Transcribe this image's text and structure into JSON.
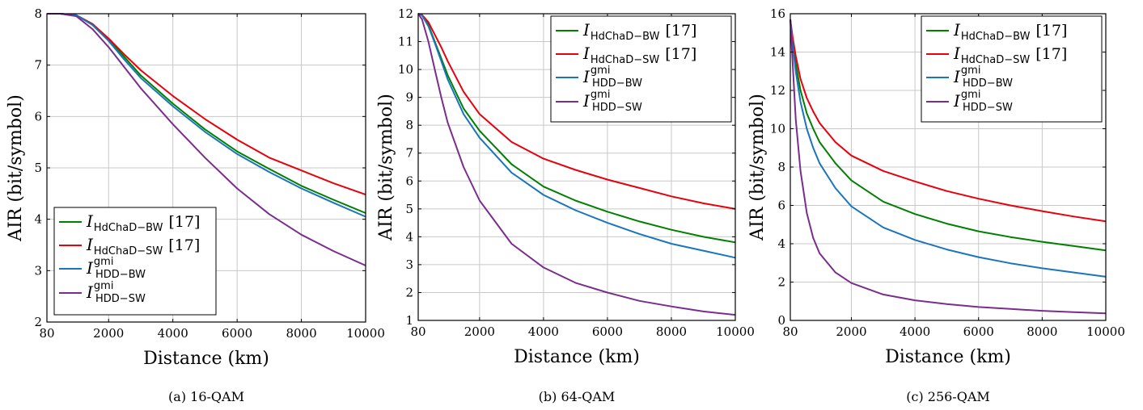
{
  "chart_data": [
    {
      "type": "line",
      "caption": "(a) 16-QAM",
      "xlabel": "Distance (km)",
      "ylabel": "AIR (bit/symbol)",
      "xlim": [
        80,
        10000
      ],
      "ylim": [
        2,
        8
      ],
      "xticks": [
        "80",
        "2000",
        "4000",
        "6000",
        "8000",
        "10000"
      ],
      "xtick_values": [
        80,
        2000,
        4000,
        6000,
        8000,
        10000
      ],
      "yticks": [
        "2",
        "3",
        "4",
        "5",
        "6",
        "7",
        "8"
      ],
      "ytick_values": [
        2,
        3,
        4,
        5,
        6,
        7,
        8
      ],
      "grid": true,
      "legend_position": "bottom-left",
      "x": [
        80,
        500,
        1000,
        1500,
        2000,
        2500,
        3000,
        4000,
        5000,
        6000,
        7000,
        8000,
        9000,
        10000
      ],
      "series": [
        {
          "main": "I",
          "sub": "HdChaD−BW",
          "sup": "",
          "ref": "[17]",
          "color": "#008000",
          "values": [
            8.0,
            8.0,
            7.97,
            7.8,
            7.5,
            7.15,
            6.8,
            6.25,
            5.75,
            5.32,
            4.98,
            4.65,
            4.38,
            4.12
          ]
        },
        {
          "main": "I",
          "sub": "HdChaD−SW",
          "sup": "",
          "ref": "[17]",
          "color": "#e8000b",
          "values": [
            8.0,
            8.0,
            7.97,
            7.8,
            7.52,
            7.2,
            6.9,
            6.4,
            5.95,
            5.55,
            5.2,
            4.95,
            4.7,
            4.48
          ]
        },
        {
          "main": "I",
          "sub": "HDD−BW",
          "sup": "gmi",
          "ref": "",
          "color": "#1a75bc",
          "values": [
            8.0,
            8.0,
            7.97,
            7.78,
            7.47,
            7.1,
            6.75,
            6.2,
            5.7,
            5.27,
            4.92,
            4.6,
            4.32,
            4.05
          ]
        },
        {
          "main": "I",
          "sub": "HDD−SW",
          "sup": "gmi",
          "ref": "",
          "color": "#7b2d8e",
          "values": [
            8.0,
            8.0,
            7.95,
            7.7,
            7.35,
            6.95,
            6.55,
            5.85,
            5.2,
            4.6,
            4.1,
            3.7,
            3.38,
            3.1
          ]
        }
      ]
    },
    {
      "type": "line",
      "caption": "(b) 64-QAM",
      "xlabel": "Distance (km)",
      "ylabel": "AIR (bit/symbol)",
      "xlim": [
        80,
        10000
      ],
      "ylim": [
        1,
        12
      ],
      "xticks": [
        "80",
        "2000",
        "4000",
        "6000",
        "8000",
        "10000"
      ],
      "xtick_values": [
        80,
        2000,
        4000,
        6000,
        8000,
        10000
      ],
      "yticks": [
        "1",
        "2",
        "3",
        "4",
        "5",
        "6",
        "7",
        "8",
        "9",
        "10",
        "11",
        "12"
      ],
      "ytick_values": [
        1,
        2,
        3,
        4,
        5,
        6,
        7,
        8,
        9,
        10,
        11,
        12
      ],
      "grid": true,
      "legend_position": "top-right",
      "x": [
        80,
        200,
        400,
        600,
        800,
        1000,
        1500,
        2000,
        3000,
        4000,
        5000,
        6000,
        7000,
        8000,
        9000,
        10000
      ],
      "series": [
        {
          "main": "I",
          "sub": "HdChaD−BW",
          "sup": "",
          "ref": "[17]",
          "color": "#008000",
          "values": [
            12.0,
            11.95,
            11.6,
            11.0,
            10.4,
            9.8,
            8.6,
            7.8,
            6.6,
            5.8,
            5.3,
            4.9,
            4.55,
            4.25,
            4.0,
            3.8
          ]
        },
        {
          "main": "I",
          "sub": "HdChaD−SW",
          "sup": "",
          "ref": "[17]",
          "color": "#e8000b",
          "values": [
            12.0,
            11.96,
            11.7,
            11.25,
            10.8,
            10.3,
            9.2,
            8.4,
            7.4,
            6.8,
            6.4,
            6.05,
            5.75,
            5.45,
            5.2,
            5.0
          ]
        },
        {
          "main": "I",
          "sub": "HDD−BW",
          "sup": "gmi",
          "ref": "",
          "color": "#1a75bc",
          "values": [
            12.0,
            11.94,
            11.55,
            10.95,
            10.3,
            9.65,
            8.4,
            7.55,
            6.3,
            5.5,
            4.95,
            4.5,
            4.1,
            3.75,
            3.5,
            3.25
          ]
        },
        {
          "main": "I",
          "sub": "HDD−SW",
          "sup": "gmi",
          "ref": "",
          "color": "#7b2d8e",
          "values": [
            12.0,
            11.8,
            11.0,
            10.0,
            9.0,
            8.1,
            6.5,
            5.3,
            3.75,
            2.9,
            2.35,
            2.0,
            1.7,
            1.5,
            1.32,
            1.2
          ]
        }
      ]
    },
    {
      "type": "line",
      "caption": "(c) 256-QAM",
      "xlabel": "Distance (km)",
      "ylabel": "AIR (bit/symbol)",
      "xlim": [
        80,
        10000
      ],
      "ylim": [
        0,
        16
      ],
      "xticks": [
        "80",
        "2000",
        "4000",
        "6000",
        "8000",
        "10000"
      ],
      "xtick_values": [
        80,
        2000,
        4000,
        6000,
        8000,
        10000
      ],
      "yticks": [
        "0",
        "2",
        "4",
        "6",
        "8",
        "10",
        "12",
        "14",
        "16"
      ],
      "ytick_values": [
        0,
        2,
        4,
        6,
        8,
        10,
        12,
        14,
        16
      ],
      "grid": true,
      "legend_position": "top-right",
      "x": [
        80,
        150,
        250,
        400,
        600,
        800,
        1000,
        1500,
        2000,
        3000,
        4000,
        5000,
        6000,
        7000,
        8000,
        9000,
        10000
      ],
      "series": [
        {
          "main": "I",
          "sub": "HdChaD−BW",
          "sup": "",
          "ref": "[17]",
          "color": "#008000",
          "values": [
            15.7,
            14.6,
            13.4,
            12.0,
            10.8,
            10.0,
            9.3,
            8.2,
            7.3,
            6.2,
            5.55,
            5.05,
            4.65,
            4.35,
            4.1,
            3.88,
            3.65
          ]
        },
        {
          "main": "I",
          "sub": "HdChaD−SW",
          "sup": "",
          "ref": "[17]",
          "color": "#e8000b",
          "values": [
            15.7,
            14.8,
            13.8,
            12.6,
            11.6,
            10.9,
            10.3,
            9.3,
            8.6,
            7.8,
            7.25,
            6.75,
            6.35,
            6.0,
            5.7,
            5.42,
            5.17
          ]
        },
        {
          "main": "I",
          "sub": "HDD−BW",
          "sup": "gmi",
          "ref": "",
          "color": "#1a75bc",
          "values": [
            15.7,
            14.4,
            13.0,
            11.4,
            10.0,
            9.0,
            8.2,
            6.9,
            5.95,
            4.85,
            4.2,
            3.7,
            3.3,
            2.98,
            2.72,
            2.5,
            2.28
          ]
        },
        {
          "main": "I",
          "sub": "HDD−SW",
          "sup": "gmi",
          "ref": "",
          "color": "#7b2d8e",
          "values": [
            15.7,
            13.5,
            10.5,
            7.8,
            5.6,
            4.3,
            3.5,
            2.5,
            1.95,
            1.35,
            1.05,
            0.85,
            0.7,
            0.6,
            0.5,
            0.43,
            0.37
          ]
        }
      ]
    }
  ]
}
